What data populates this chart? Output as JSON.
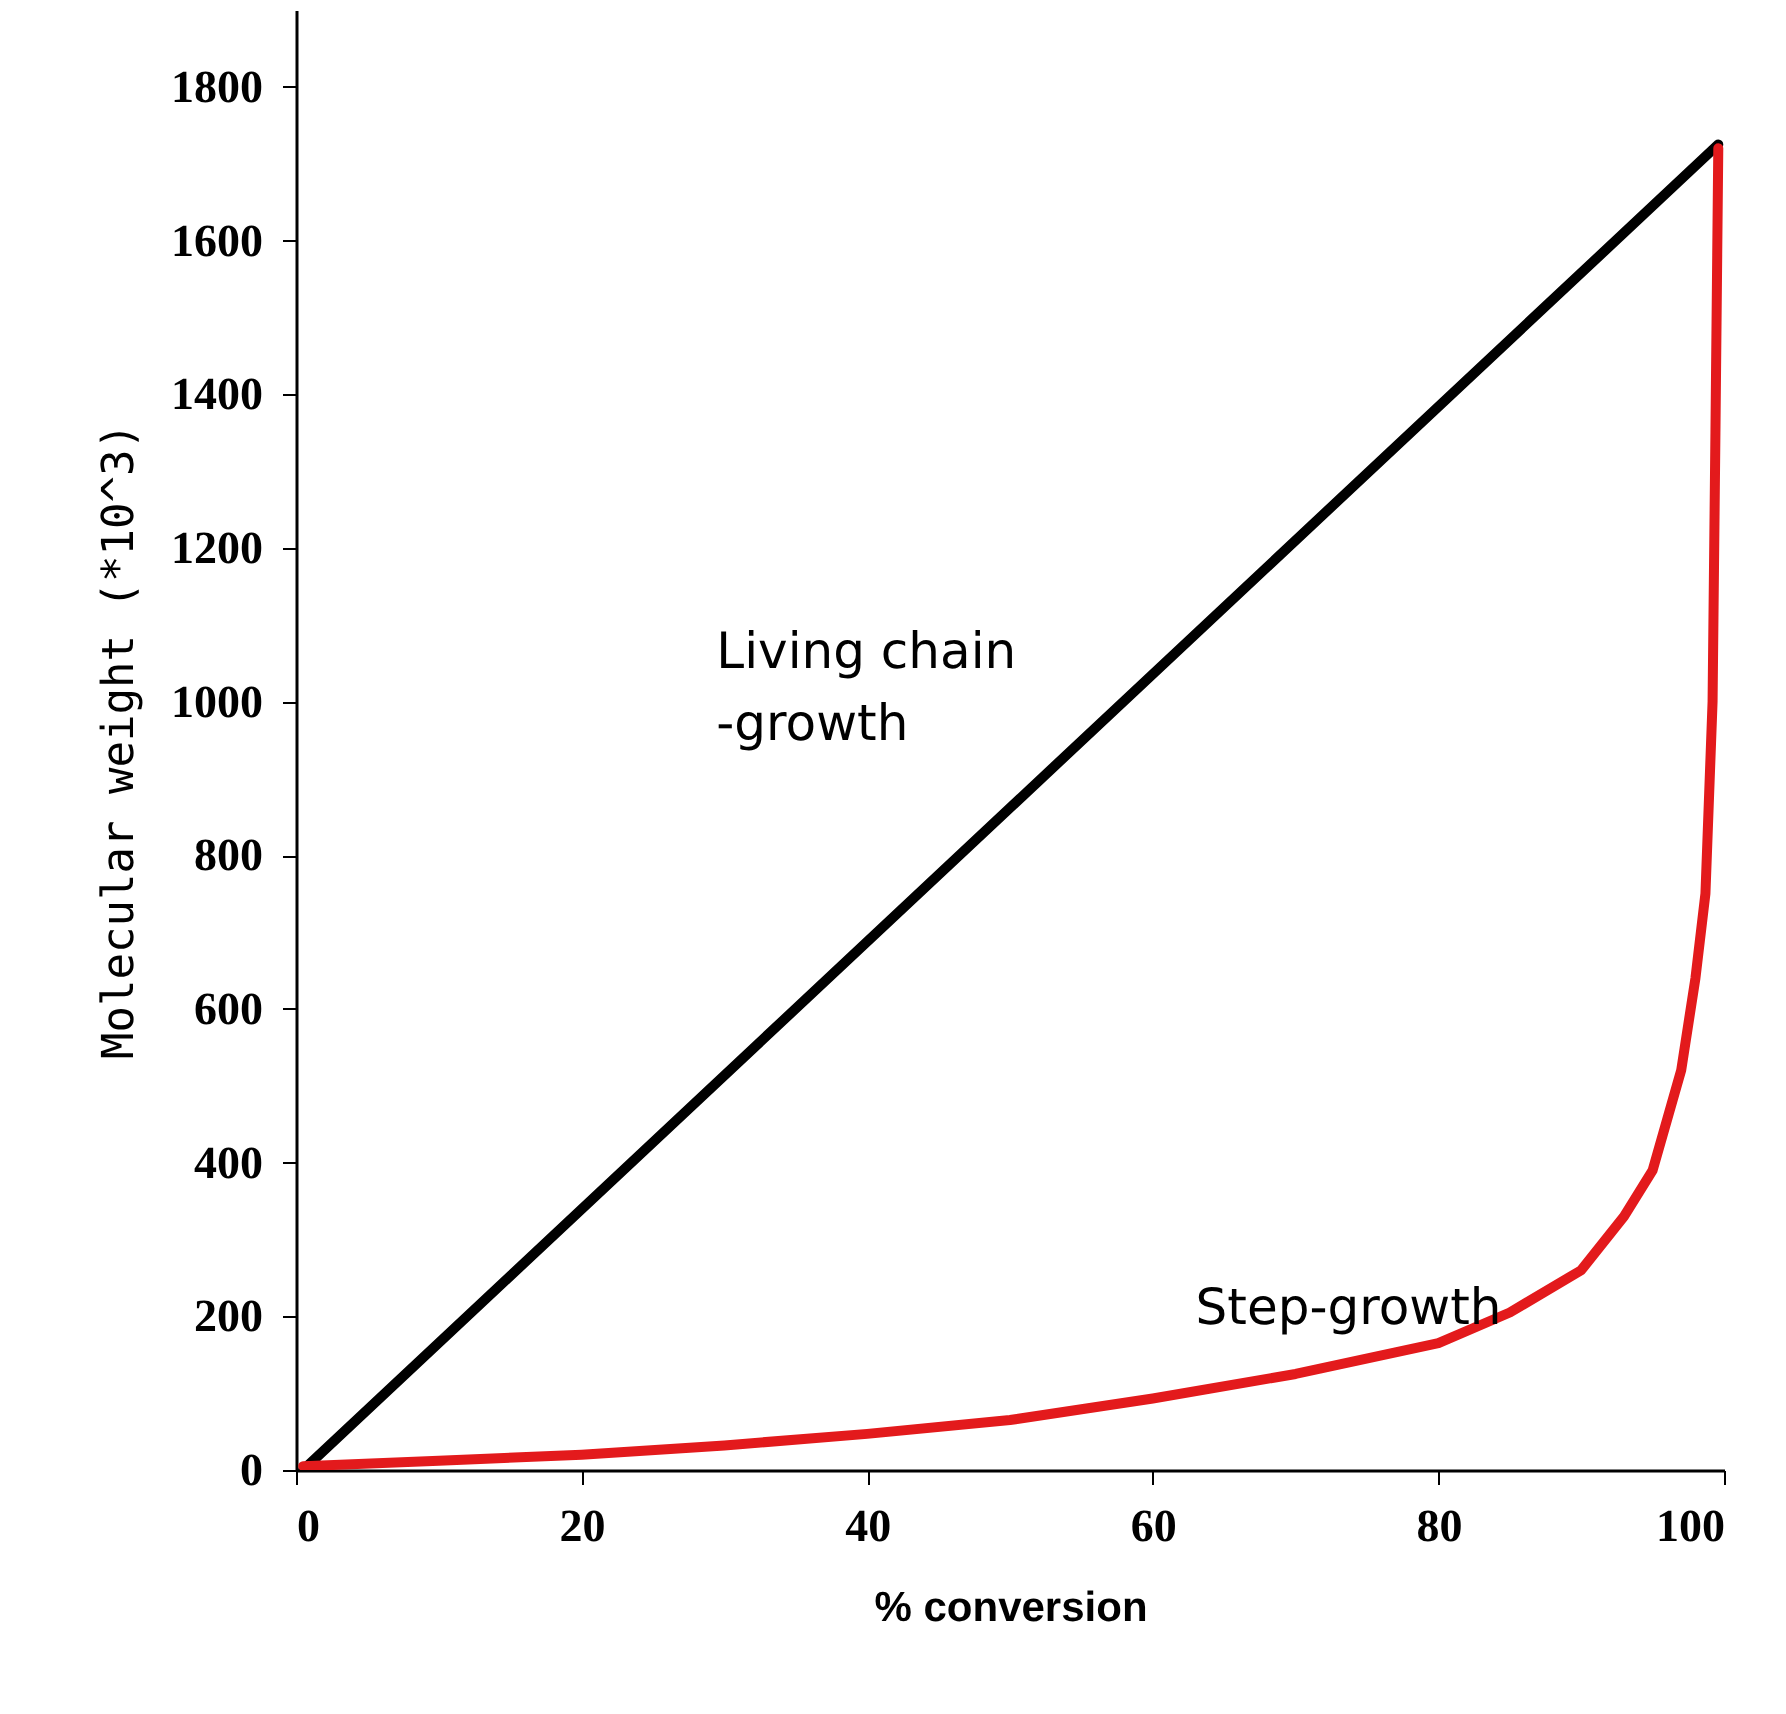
{
  "chart_data": {
    "type": "line",
    "xlabel": "% conversion",
    "ylabel": "Molecular weight (*10^3)",
    "xlim": [
      0,
      100
    ],
    "ylim": [
      0,
      1900
    ],
    "xticks": [
      0,
      20,
      40,
      60,
      80,
      100
    ],
    "yticks": [
      0,
      200,
      400,
      600,
      800,
      1000,
      1200,
      1400,
      1600,
      1800
    ],
    "grid": false,
    "marker": "none",
    "line_style": "solid",
    "series": [
      {
        "name": "Living chain\n-growth",
        "color": "#000000",
        "x": [
          0.5,
          99.6
        ],
        "values": [
          0,
          1725
        ]
      },
      {
        "name": "Step-growth",
        "color": "#e31a1c",
        "x": [
          0.5,
          10,
          20,
          30,
          40,
          50,
          60,
          70,
          80,
          85,
          90,
          93,
          95,
          97,
          98,
          98.7,
          99.2,
          99.4,
          99.6
        ],
        "values": [
          5,
          12,
          20,
          32,
          47,
          65,
          93,
          125,
          165,
          205,
          260,
          330,
          390,
          520,
          640,
          750,
          1000,
          1350,
          1720
        ]
      }
    ]
  }
}
